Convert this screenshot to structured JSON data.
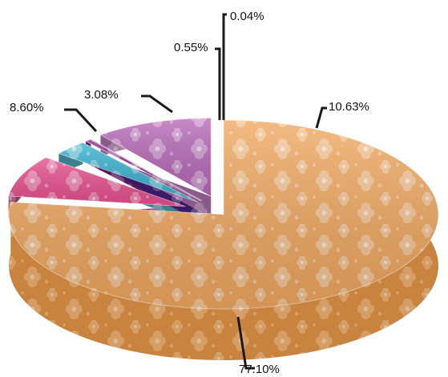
{
  "chart_data": {
    "type": "pie",
    "style": "3d-exploded",
    "labels": [
      "77.10%",
      "8.60%",
      "3.08%",
      "0.55%",
      "0.04%",
      "10.63%"
    ],
    "values": [
      77.1,
      8.6,
      3.08,
      0.55,
      0.04,
      10.63
    ],
    "colors": [
      "#f0a860",
      "#e8508e",
      "#38b2d0",
      "#8c2a8c",
      "#5a2aa0",
      "#b86ab8"
    ],
    "side_colors": [
      "#c8843e",
      "#8a3658",
      "#3d7f8f",
      "#5a1a5a",
      "#3a1a66",
      "#8a5a8a"
    ],
    "pattern": "floral",
    "title": "",
    "legend": "none"
  }
}
